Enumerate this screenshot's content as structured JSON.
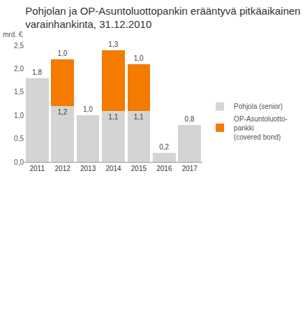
{
  "chart_data": {
    "type": "bar",
    "title": "Pohjolan ja OP-Asuntoluottopankin erääntyvä pitkäaikainen\nvarainhankinta, 31.12.2010",
    "y_label": "mrd. €",
    "categories": [
      "2011",
      "2012",
      "2013",
      "2014",
      "2015",
      "2016",
      "2017"
    ],
    "series": [
      {
        "name": "Pohjola (senior)",
        "color": "#d4d4d4",
        "values": [
          1.8,
          1.2,
          1.0,
          1.1,
          1.1,
          0.2,
          0.8
        ],
        "value_labels": [
          "1,8",
          "1,2",
          "1,0",
          "1,1",
          "1,1",
          "0,2",
          "0,8"
        ]
      },
      {
        "name": "OP-Asuntoluotto-\npankki\n(covered bond)",
        "color": "#f47a00",
        "values": [
          null,
          1.0,
          null,
          1.3,
          1.0,
          null,
          null
        ],
        "value_labels": [
          null,
          "1,0",
          null,
          "1,3",
          "1,0",
          null,
          null
        ]
      }
    ],
    "stacked": true,
    "data_labels": true,
    "grid": false,
    "legend": "right",
    "ylim": [
      0,
      2.5
    ],
    "yticks": [
      {
        "value": 0,
        "label": "0,0"
      },
      {
        "value": 0.5,
        "label": "0,5"
      },
      {
        "value": 1,
        "label": "1,0"
      },
      {
        "value": 1.5,
        "label": "1,5"
      },
      {
        "value": 2,
        "label": "2,0"
      },
      {
        "value": 2.5,
        "label": "2,5"
      }
    ]
  }
}
